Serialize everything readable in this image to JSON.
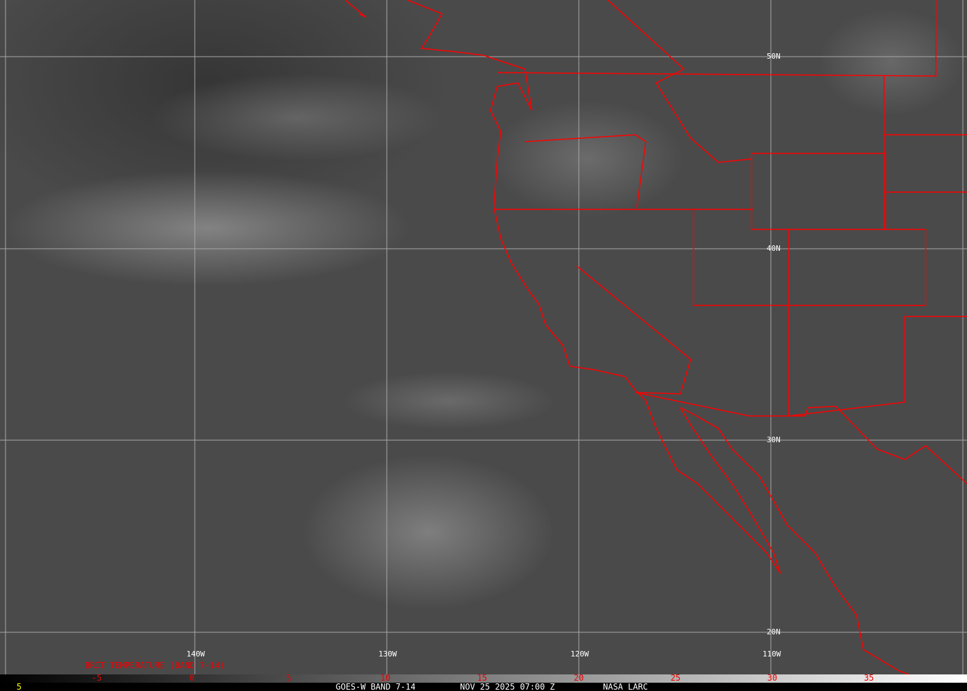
{
  "map": {
    "type": "satellite-infrared",
    "grid": true,
    "border_color": "#ff0000",
    "grid_color": "#b0b0b0"
  },
  "lat_labels": [
    "50N",
    "40N",
    "30N",
    "20N"
  ],
  "lon_labels": [
    "140W",
    "130W",
    "120W",
    "110W"
  ],
  "colorbar": {
    "title": "BRIT TEMPERATURE (BAND 7-14)",
    "ticks": [
      "-5",
      "0",
      "5",
      "10",
      "15",
      "20",
      "25",
      "30",
      "35"
    ],
    "min_label": "5",
    "label_color": "#ff0000"
  },
  "footer": {
    "satellite": "GOES-W BAND 7-14",
    "datetime": "NOV 25 2025 07:00 Z",
    "credit": "NASA LARC"
  }
}
